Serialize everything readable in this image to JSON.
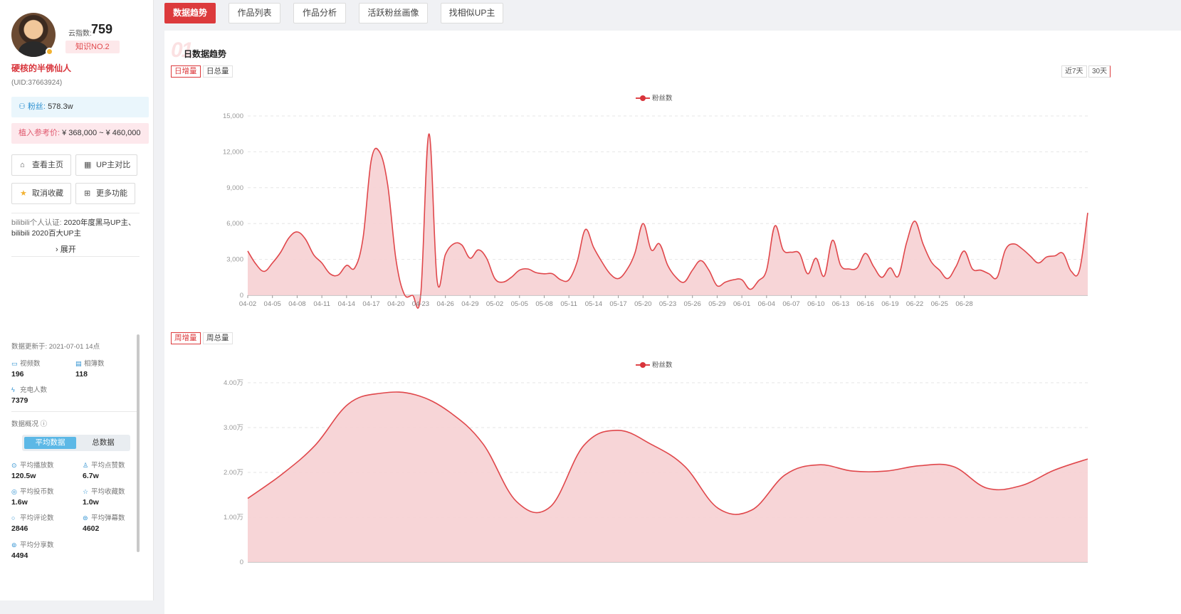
{
  "profile": {
    "score_label": "云指数:",
    "score_value": "759",
    "rank": "知识NO.2",
    "name": "硬核的半佛仙人",
    "uid": "(UID:37663924)",
    "fans_label": "粉丝:",
    "fans_value": "578.3w",
    "price_label": "植入参考价:",
    "price_value": "¥ 368,000 ~ ¥ 460,000"
  },
  "actions": [
    {
      "label": "查看主页",
      "icon": "home-icon"
    },
    {
      "label": "UP主对比",
      "icon": "compare-icon"
    },
    {
      "label": "取消收藏",
      "icon": "star-icon"
    },
    {
      "label": "更多功能",
      "icon": "grid-icon"
    }
  ],
  "cert": {
    "label": "bilibili个人认证:",
    "text": "2020年度黑马UP主、bilibili 2020百大UP主",
    "expand": "展开"
  },
  "stats": {
    "updated": "数据更新于: 2021-07-01 14点",
    "items": [
      {
        "label": "视频数",
        "value": "196",
        "icon": "video-icon"
      },
      {
        "label": "相簿数",
        "value": "118",
        "icon": "album-icon"
      },
      {
        "label": "充电人数",
        "value": "7379",
        "icon": "charge-icon"
      }
    ],
    "overview_label": "数据概况",
    "seg_avg": "平均数据",
    "seg_total": "总数据",
    "avg": [
      {
        "label": "平均播放数",
        "value": "120.5w"
      },
      {
        "label": "平均点赞数",
        "value": "6.7w"
      },
      {
        "label": "平均投币数",
        "value": "1.6w"
      },
      {
        "label": "平均收藏数",
        "value": "1.0w"
      },
      {
        "label": "平均评论数",
        "value": "2846"
      },
      {
        "label": "平均弹幕数",
        "value": "4602"
      },
      {
        "label": "平均分享数",
        "value": "4494"
      }
    ]
  },
  "tabs": [
    "数据趋势",
    "作品列表",
    "作品分析",
    "活跃粉丝画像",
    "找相似UP主"
  ],
  "section": {
    "number": "01",
    "title": "日数据趋势",
    "daily_toggle": [
      "日增量",
      "日总量"
    ],
    "weekly_toggle": [
      "周增量",
      "周总量"
    ],
    "ranges": [
      "近7天",
      "30天"
    ]
  },
  "colors": {
    "accent": "#dc3a3c",
    "line": "#e0474b",
    "fill": "#f7d3d5"
  },
  "chart_data": [
    {
      "type": "area",
      "legend": "粉丝数",
      "x_ticks": [
        "04-02",
        "04-05",
        "04-08",
        "04-11",
        "04-14",
        "04-17",
        "04-20",
        "04-23",
        "04-26",
        "04-29",
        "05-02",
        "05-05",
        "05-08",
        "05-11",
        "05-14",
        "05-17",
        "05-20",
        "05-23",
        "05-26",
        "05-29",
        "06-01",
        "06-04",
        "06-07",
        "06-10",
        "06-13",
        "06-16",
        "06-19",
        "06-22",
        "06-25",
        "06-28"
      ],
      "y_ticks": [
        "0",
        "3,000",
        "6,000",
        "9,000",
        "12,000",
        "15,000"
      ],
      "ylim": [
        0,
        15000
      ],
      "series": [
        {
          "name": "粉丝数",
          "values": [
            3700,
            2600,
            2000,
            2700,
            3600,
            4800,
            5300,
            4700,
            3400,
            2700,
            1800,
            1700,
            2500,
            2300,
            4800,
            11300,
            12000,
            9200,
            3000,
            100,
            0,
            0,
            13500,
            1200,
            3400,
            4300,
            4200,
            3100,
            3800,
            3100,
            1400,
            1100,
            1500,
            2100,
            2200,
            1900,
            1800,
            1800,
            1300,
            1300,
            2800,
            5500,
            4000,
            2800,
            1800,
            1400,
            2100,
            3500,
            6000,
            3800,
            4300,
            2500,
            1500,
            1100,
            2100,
            2900,
            2100,
            800,
            1100,
            1300,
            1300,
            500,
            1200,
            2100,
            5800,
            3800,
            3600,
            3500,
            1800,
            3100,
            1600,
            4600,
            2500,
            2200,
            2300,
            3500,
            2400,
            1500,
            2300,
            1600,
            4400,
            6200,
            4300,
            2800,
            2100,
            1400,
            2400,
            3700,
            2200,
            2100,
            1800,
            1500,
            3800,
            4300,
            3900,
            3300,
            2700,
            3200,
            3300,
            3500,
            2000,
            2100,
            6900
          ]
        }
      ]
    },
    {
      "type": "area",
      "legend": "粉丝数",
      "y_ticks": [
        "0",
        "1.00万",
        "2.00万",
        "3.00万",
        "4.00万"
      ],
      "ylim": [
        0,
        40000
      ],
      "series": [
        {
          "name": "粉丝数",
          "values": [
            14200,
            19500,
            26000,
            35300,
            37700,
            37300,
            33500,
            26400,
            13500,
            12300,
            26000,
            29400,
            26300,
            21400,
            12000,
            11600,
            19500,
            21700,
            20300,
            20300,
            21500,
            21300,
            16500,
            17000,
            20500,
            23000
          ]
        }
      ]
    }
  ]
}
